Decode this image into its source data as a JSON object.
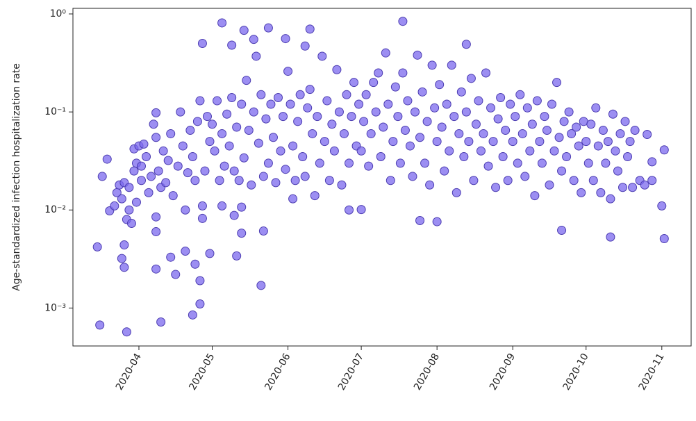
{
  "chart_data": {
    "type": "scatter",
    "ylabel": "Age-standardized infection hospitalization rate",
    "log_y": true,
    "color": "#7b68ee",
    "edge_color": "#4b3cb0",
    "xlim": [
      "2020-03-05",
      "2020-11-13"
    ],
    "ylim": [
      0.00041,
      1.14
    ],
    "xticks": [
      {
        "value": "2020-04-01",
        "label": "2020-04"
      },
      {
        "value": "2020-05-01",
        "label": "2020-05"
      },
      {
        "value": "2020-06-01",
        "label": "2020-06"
      },
      {
        "value": "2020-07-01",
        "label": "2020-07"
      },
      {
        "value": "2020-08-01",
        "label": "2020-08"
      },
      {
        "value": "2020-09-01",
        "label": "2020-09"
      },
      {
        "value": "2020-10-01",
        "label": "2020-10"
      },
      {
        "value": "2020-11-01",
        "label": "2020-11"
      }
    ],
    "yticks": [
      {
        "value": 0.001,
        "label": "10⁻³"
      },
      {
        "value": 0.01,
        "label": "10⁻²"
      },
      {
        "value": 0.1,
        "label": "10⁻¹"
      },
      {
        "value": 1,
        "label": "10⁰"
      }
    ],
    "x": [
      "2020-03-15",
      "2020-03-16",
      "2020-03-27",
      "2020-03-17",
      "2020-04-10",
      "2020-04-08",
      "2020-03-25",
      "2020-03-26",
      "2020-03-26",
      "2020-04-23",
      "2020-04-26",
      "2020-04-26",
      "2020-05-21",
      "2020-05-05",
      "2020-04-27",
      "2020-05-14",
      "2020-05-24",
      "2020-06-10",
      "2020-07-18",
      "2020-08-13",
      "2020-05-31",
      "2020-07-25",
      "2020-08-01",
      "2020-09-21",
      "2020-10-11",
      "2020-11-02",
      "2020-11-01",
      "2020-11-02",
      "2020-10-26",
      "2020-10-28",
      "2020-06-26",
      "2020-07-01",
      "2020-05-22",
      "2020-05-13",
      "2020-05-11",
      "2020-04-30",
      "2020-05-10",
      "2020-05-13",
      "2020-05-05",
      "2020-03-20",
      "2020-03-22",
      "2020-03-23",
      "2020-03-24",
      "2020-03-25",
      "2020-03-26",
      "2020-03-27",
      "2020-03-28",
      "2020-03-29",
      "2020-03-30",
      "2020-03-30",
      "2020-03-31",
      "2020-03-31",
      "2020-03-19",
      "2020-03-28",
      "2020-04-01",
      "2020-04-02",
      "2020-04-02",
      "2020-04-03",
      "2020-04-04",
      "2020-04-05",
      "2020-04-06",
      "2020-04-07",
      "2020-04-08",
      "2020-04-08",
      "2020-04-08",
      "2020-04-08",
      "2020-04-09",
      "2020-04-10",
      "2020-04-11",
      "2020-04-12",
      "2020-04-13",
      "2020-04-14",
      "2020-04-15",
      "2020-04-16",
      "2020-04-17",
      "2020-04-18",
      "2020-04-19",
      "2020-04-20",
      "2020-04-21",
      "2020-04-22",
      "2020-04-23",
      "2020-04-24",
      "2020-04-25",
      "2020-04-26",
      "2020-04-27",
      "2020-04-27",
      "2020-04-28",
      "2020-04-29",
      "2020-04-30",
      "2020-04-14",
      "2020-04-20",
      "2020-04-24",
      "2020-05-01",
      "2020-05-02",
      "2020-05-03",
      "2020-05-04",
      "2020-05-05",
      "2020-05-06",
      "2020-05-07",
      "2020-05-08",
      "2020-05-09",
      "2020-05-10",
      "2020-05-11",
      "2020-05-12",
      "2020-05-13",
      "2020-05-14",
      "2020-05-15",
      "2020-05-16",
      "2020-05-17",
      "2020-05-18",
      "2020-05-19",
      "2020-05-20",
      "2020-05-21",
      "2020-05-22",
      "2020-05-23",
      "2020-05-24",
      "2020-05-25",
      "2020-05-26",
      "2020-05-27",
      "2020-05-28",
      "2020-05-29",
      "2020-05-30",
      "2020-05-31",
      "2020-05-09",
      "2020-05-18",
      "2020-06-01",
      "2020-06-02",
      "2020-06-03",
      "2020-06-04",
      "2020-06-05",
      "2020-06-06",
      "2020-06-07",
      "2020-06-08",
      "2020-06-09",
      "2020-06-10",
      "2020-06-11",
      "2020-06-12",
      "2020-06-13",
      "2020-06-14",
      "2020-06-15",
      "2020-06-16",
      "2020-06-17",
      "2020-06-18",
      "2020-06-19",
      "2020-06-20",
      "2020-06-21",
      "2020-06-22",
      "2020-06-23",
      "2020-06-24",
      "2020-06-25",
      "2020-06-26",
      "2020-06-27",
      "2020-06-28",
      "2020-06-29",
      "2020-06-30",
      "2020-06-08",
      "2020-06-03",
      "2020-07-01",
      "2020-07-02",
      "2020-07-03",
      "2020-07-04",
      "2020-07-05",
      "2020-07-06",
      "2020-07-07",
      "2020-07-08",
      "2020-07-09",
      "2020-07-10",
      "2020-07-11",
      "2020-07-12",
      "2020-07-13",
      "2020-07-14",
      "2020-07-15",
      "2020-07-16",
      "2020-07-17",
      "2020-07-18",
      "2020-07-19",
      "2020-07-20",
      "2020-07-21",
      "2020-07-22",
      "2020-07-23",
      "2020-07-24",
      "2020-07-25",
      "2020-07-26",
      "2020-07-27",
      "2020-07-28",
      "2020-07-29",
      "2020-07-30",
      "2020-07-31",
      "2020-08-01",
      "2020-08-02",
      "2020-08-03",
      "2020-08-04",
      "2020-08-05",
      "2020-08-06",
      "2020-08-07",
      "2020-08-08",
      "2020-08-09",
      "2020-08-10",
      "2020-08-11",
      "2020-08-12",
      "2020-08-13",
      "2020-08-14",
      "2020-08-15",
      "2020-08-16",
      "2020-08-17",
      "2020-08-18",
      "2020-08-19",
      "2020-08-20",
      "2020-08-21",
      "2020-08-22",
      "2020-08-23",
      "2020-08-24",
      "2020-08-25",
      "2020-08-26",
      "2020-08-27",
      "2020-08-28",
      "2020-08-29",
      "2020-08-30",
      "2020-08-31",
      "2020-09-01",
      "2020-09-02",
      "2020-09-03",
      "2020-09-04",
      "2020-09-05",
      "2020-09-06",
      "2020-09-07",
      "2020-09-08",
      "2020-09-09",
      "2020-09-10",
      "2020-09-11",
      "2020-09-12",
      "2020-09-13",
      "2020-09-14",
      "2020-09-15",
      "2020-09-16",
      "2020-09-17",
      "2020-09-18",
      "2020-09-19",
      "2020-09-20",
      "2020-09-21",
      "2020-09-22",
      "2020-09-23",
      "2020-09-24",
      "2020-09-25",
      "2020-09-26",
      "2020-09-27",
      "2020-09-28",
      "2020-09-29",
      "2020-09-30",
      "2020-10-01",
      "2020-10-02",
      "2020-10-03",
      "2020-10-04",
      "2020-10-05",
      "2020-10-06",
      "2020-10-07",
      "2020-10-08",
      "2020-10-09",
      "2020-10-10",
      "2020-10-11",
      "2020-10-12",
      "2020-10-13",
      "2020-10-14",
      "2020-10-15",
      "2020-10-16",
      "2020-10-17",
      "2020-10-18",
      "2020-10-19",
      "2020-10-20",
      "2020-10-21",
      "2020-10-23",
      "2020-10-25",
      "2020-10-28"
    ],
    "values": [
      0.0042,
      0.00067,
      0.00057,
      0.022,
      0.00072,
      0.0025,
      0.0032,
      0.0026,
      0.0044,
      0.00085,
      0.0011,
      0.0019,
      0.0017,
      0.81,
      0.5,
      0.68,
      0.72,
      0.7,
      0.84,
      0.49,
      0.56,
      0.0078,
      0.0076,
      0.0062,
      0.0053,
      0.0051,
      0.011,
      0.041,
      0.059,
      0.031,
      0.01,
      0.0101,
      0.0061,
      0.0058,
      0.0034,
      0.0036,
      0.0088,
      0.0107,
      0.011,
      0.0098,
      0.011,
      0.015,
      0.018,
      0.013,
      0.019,
      0.008,
      0.017,
      0.0073,
      0.042,
      0.025,
      0.03,
      0.012,
      0.033,
      0.01,
      0.045,
      0.028,
      0.02,
      0.047,
      0.035,
      0.015,
      0.022,
      0.075,
      0.098,
      0.055,
      0.0085,
      0.006,
      0.025,
      0.017,
      0.04,
      0.019,
      0.032,
      0.06,
      0.014,
      0.0022,
      0.028,
      0.1,
      0.045,
      0.01,
      0.024,
      0.065,
      0.035,
      0.02,
      0.08,
      0.13,
      0.011,
      0.0082,
      0.025,
      0.09,
      0.05,
      0.0033,
      0.0038,
      0.0028,
      0.075,
      0.04,
      0.13,
      0.02,
      0.06,
      0.028,
      0.095,
      0.045,
      0.14,
      0.025,
      0.07,
      0.02,
      0.12,
      0.034,
      0.21,
      0.065,
      0.018,
      0.1,
      0.37,
      0.048,
      0.15,
      0.022,
      0.085,
      0.03,
      0.12,
      0.055,
      0.019,
      0.14,
      0.04,
      0.09,
      0.026,
      0.48,
      0.55,
      0.26,
      0.12,
      0.045,
      0.02,
      0.08,
      0.15,
      0.035,
      0.022,
      0.11,
      0.17,
      0.06,
      0.014,
      0.09,
      0.03,
      0.37,
      0.05,
      0.13,
      0.02,
      0.075,
      0.04,
      0.27,
      0.1,
      0.018,
      0.06,
      0.15,
      0.03,
      0.09,
      0.2,
      0.045,
      0.12,
      0.47,
      0.013,
      0.04,
      0.08,
      0.15,
      0.028,
      0.06,
      0.2,
      0.1,
      0.25,
      0.035,
      0.07,
      0.4,
      0.12,
      0.02,
      0.05,
      0.18,
      0.09,
      0.03,
      0.25,
      0.065,
      0.13,
      0.045,
      0.022,
      0.1,
      0.38,
      0.055,
      0.16,
      0.03,
      0.08,
      0.018,
      0.3,
      0.11,
      0.05,
      0.19,
      0.07,
      0.025,
      0.12,
      0.04,
      0.3,
      0.09,
      0.015,
      0.06,
      0.16,
      0.035,
      0.1,
      0.05,
      0.22,
      0.02,
      0.075,
      0.13,
      0.04,
      0.06,
      0.25,
      0.028,
      0.11,
      0.05,
      0.017,
      0.085,
      0.14,
      0.035,
      0.065,
      0.02,
      0.12,
      0.05,
      0.09,
      0.03,
      0.15,
      0.06,
      0.022,
      0.11,
      0.04,
      0.075,
      0.014,
      0.13,
      0.05,
      0.03,
      0.09,
      0.065,
      0.018,
      0.12,
      0.04,
      0.2,
      0.055,
      0.025,
      0.08,
      0.035,
      0.1,
      0.06,
      0.02,
      0.07,
      0.045,
      0.015,
      0.08,
      0.05,
      0.03,
      0.075,
      0.02,
      0.11,
      0.045,
      0.015,
      0.065,
      0.03,
      0.05,
      0.013,
      0.095,
      0.04,
      0.025,
      0.06,
      0.017,
      0.08,
      0.035,
      0.05,
      0.017,
      0.065,
      0.02,
      0.018,
      0.02
    ]
  }
}
